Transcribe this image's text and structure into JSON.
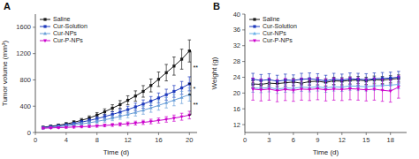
{
  "chart_data": [
    {
      "type": "line",
      "title": "A",
      "xlabel": "Time (d)",
      "ylabel": "Tumor volume (mm³)",
      "xlim": [
        0,
        21
      ],
      "ylim": [
        0,
        1800
      ],
      "xticks": [
        0,
        4,
        8,
        12,
        16,
        20
      ],
      "yticks": [
        0,
        400,
        800,
        1200,
        1600
      ],
      "grid": false,
      "legend": "upper left",
      "series": [
        {
          "name": "Saline",
          "color": "#1a1a1a",
          "marker": "square",
          "x": [
            1,
            2,
            3,
            4,
            5,
            6,
            7,
            8,
            9,
            10,
            11,
            12,
            13,
            14,
            15,
            16,
            17,
            18,
            19,
            20
          ],
          "values": [
            80,
            95,
            110,
            130,
            155,
            185,
            220,
            265,
            315,
            370,
            425,
            490,
            555,
            625,
            715,
            810,
            910,
            1010,
            1115,
            1240
          ],
          "yerr": [
            12,
            15,
            18,
            20,
            24,
            28,
            33,
            38,
            44,
            52,
            60,
            68,
            78,
            88,
            98,
            110,
            125,
            138,
            152,
            168
          ]
        },
        {
          "name": "Cur-Solution",
          "color": "#1f3bbd",
          "marker": "square",
          "x": [
            1,
            2,
            3,
            4,
            5,
            6,
            7,
            8,
            9,
            10,
            11,
            12,
            13,
            14,
            15,
            16,
            17,
            18,
            19,
            20
          ],
          "values": [
            75,
            88,
            100,
            115,
            135,
            158,
            183,
            210,
            242,
            275,
            310,
            348,
            390,
            432,
            478,
            525,
            575,
            625,
            678,
            740
          ],
          "yerr": [
            10,
            13,
            15,
            18,
            21,
            24,
            28,
            32,
            36,
            41,
            46,
            51,
            57,
            63,
            69,
            76,
            83,
            90,
            98,
            107
          ]
        },
        {
          "name": "Cur-NPs",
          "color": "#6a9fd8",
          "marker": "triangle-up",
          "x": [
            1,
            2,
            3,
            4,
            5,
            6,
            7,
            8,
            9,
            10,
            11,
            12,
            13,
            14,
            15,
            16,
            17,
            18,
            19,
            20
          ],
          "values": [
            68,
            78,
            88,
            100,
            115,
            130,
            148,
            168,
            192,
            218,
            245,
            274,
            305,
            338,
            374,
            412,
            452,
            492,
            533,
            578
          ],
          "yerr": [
            10,
            12,
            14,
            17,
            20,
            23,
            27,
            31,
            35,
            39,
            44,
            49,
            54,
            60,
            66,
            72,
            79,
            86,
            93,
            101
          ]
        },
        {
          "name": "Cur-P-NPs",
          "color": "#cc00cc",
          "marker": "triangle-down",
          "x": [
            1,
            2,
            3,
            4,
            5,
            6,
            7,
            8,
            9,
            10,
            11,
            12,
            13,
            14,
            15,
            16,
            17,
            18,
            19,
            20
          ],
          "values": [
            65,
            70,
            74,
            78,
            83,
            88,
            93,
            99,
            107,
            115,
            124,
            133,
            143,
            154,
            167,
            182,
            199,
            218,
            240,
            265
          ],
          "yerr": [
            11,
            12,
            13,
            14,
            15,
            16,
            17,
            18,
            20,
            22,
            24,
            27,
            29,
            32,
            35,
            38,
            42,
            47,
            53,
            58
          ]
        }
      ],
      "annotations": [
        {
          "label": "**",
          "x": 20.2,
          "y1": 740,
          "y2": 1240
        },
        {
          "label": "*",
          "x": 20.2,
          "y1": 578,
          "y2": 740
        },
        {
          "label": "**",
          "x": 20.2,
          "y1": 265,
          "y2": 578
        }
      ]
    },
    {
      "type": "line",
      "title": "B",
      "xlabel": "Time (d)",
      "ylabel": "Weight (g)",
      "xlim": [
        0,
        20
      ],
      "ylim": [
        10,
        40
      ],
      "xticks": [
        0,
        3,
        6,
        9,
        12,
        15,
        18
      ],
      "yticks": [
        12,
        16,
        20,
        24,
        28,
        32,
        36,
        40
      ],
      "grid": false,
      "legend": "upper left",
      "series": [
        {
          "name": "Saline",
          "color": "#1a1a1a",
          "marker": "square",
          "x": [
            1,
            2,
            3,
            4,
            5,
            6,
            7,
            8,
            9,
            10,
            11,
            12,
            13,
            14,
            15,
            16,
            17,
            18,
            19
          ],
          "values": [
            22.3,
            22.2,
            22.5,
            22.4,
            22.6,
            22.8,
            22.5,
            22.9,
            23.0,
            22.7,
            23.1,
            23.0,
            23.2,
            23.3,
            23.1,
            23.4,
            23.3,
            23.5,
            23.7
          ],
          "yerr": [
            0.8,
            0.8,
            0.8,
            0.8,
            0.9,
            0.9,
            0.9,
            0.9,
            0.9,
            0.9,
            0.9,
            0.9,
            0.9,
            0.9,
            0.9,
            0.9,
            0.9,
            0.9,
            0.9
          ]
        },
        {
          "name": "Cur-Solution",
          "color": "#1f3bbd",
          "marker": "square",
          "x": [
            1,
            2,
            3,
            4,
            5,
            6,
            7,
            8,
            9,
            10,
            11,
            12,
            13,
            14,
            15,
            16,
            17,
            18,
            19
          ],
          "values": [
            23.5,
            23.2,
            23.4,
            23.0,
            23.3,
            23.2,
            23.5,
            23.6,
            23.4,
            23.1,
            23.5,
            23.3,
            23.6,
            23.5,
            23.4,
            23.6,
            23.7,
            23.8,
            24.0
          ],
          "yerr": [
            1.5,
            1.5,
            1.5,
            1.5,
            1.5,
            1.4,
            1.5,
            1.5,
            1.5,
            1.4,
            1.5,
            1.5,
            1.5,
            1.5,
            1.5,
            1.5,
            1.5,
            1.5,
            1.5
          ]
        },
        {
          "name": "Cur-NPs",
          "color": "#6ab0e8",
          "marker": "triangle-up",
          "x": [
            1,
            2,
            3,
            4,
            5,
            6,
            7,
            8,
            9,
            10,
            11,
            12,
            13,
            14,
            15,
            16,
            17,
            18,
            19
          ],
          "values": [
            21.3,
            21.2,
            21.4,
            21.0,
            21.3,
            21.2,
            21.5,
            21.4,
            21.6,
            21.3,
            21.6,
            21.5,
            21.8,
            21.7,
            21.6,
            21.8,
            21.9,
            22.0,
            22.2
          ],
          "yerr": [
            1.1,
            1.1,
            1.1,
            1.1,
            1.1,
            1.1,
            1.1,
            1.1,
            1.1,
            1.1,
            1.1,
            1.1,
            1.1,
            1.1,
            1.1,
            1.1,
            1.1,
            1.1,
            1.1
          ]
        },
        {
          "name": "Cur-P-NPs",
          "color": "#cc00cc",
          "marker": "triangle-down",
          "x": [
            1,
            2,
            3,
            4,
            5,
            6,
            7,
            8,
            9,
            10,
            11,
            12,
            13,
            14,
            15,
            16,
            17,
            18,
            19
          ],
          "values": [
            21.0,
            20.8,
            21.0,
            20.6,
            20.9,
            20.7,
            21.0,
            20.9,
            21.1,
            20.8,
            21.0,
            20.9,
            21.1,
            21.0,
            20.8,
            21.0,
            20.7,
            20.5,
            21.5
          ],
          "yerr": [
            2.8,
            2.8,
            2.8,
            2.8,
            2.8,
            2.8,
            2.8,
            2.8,
            2.8,
            2.8,
            2.8,
            2.8,
            2.8,
            2.8,
            2.8,
            2.8,
            2.8,
            2.8,
            2.8
          ]
        }
      ]
    }
  ]
}
